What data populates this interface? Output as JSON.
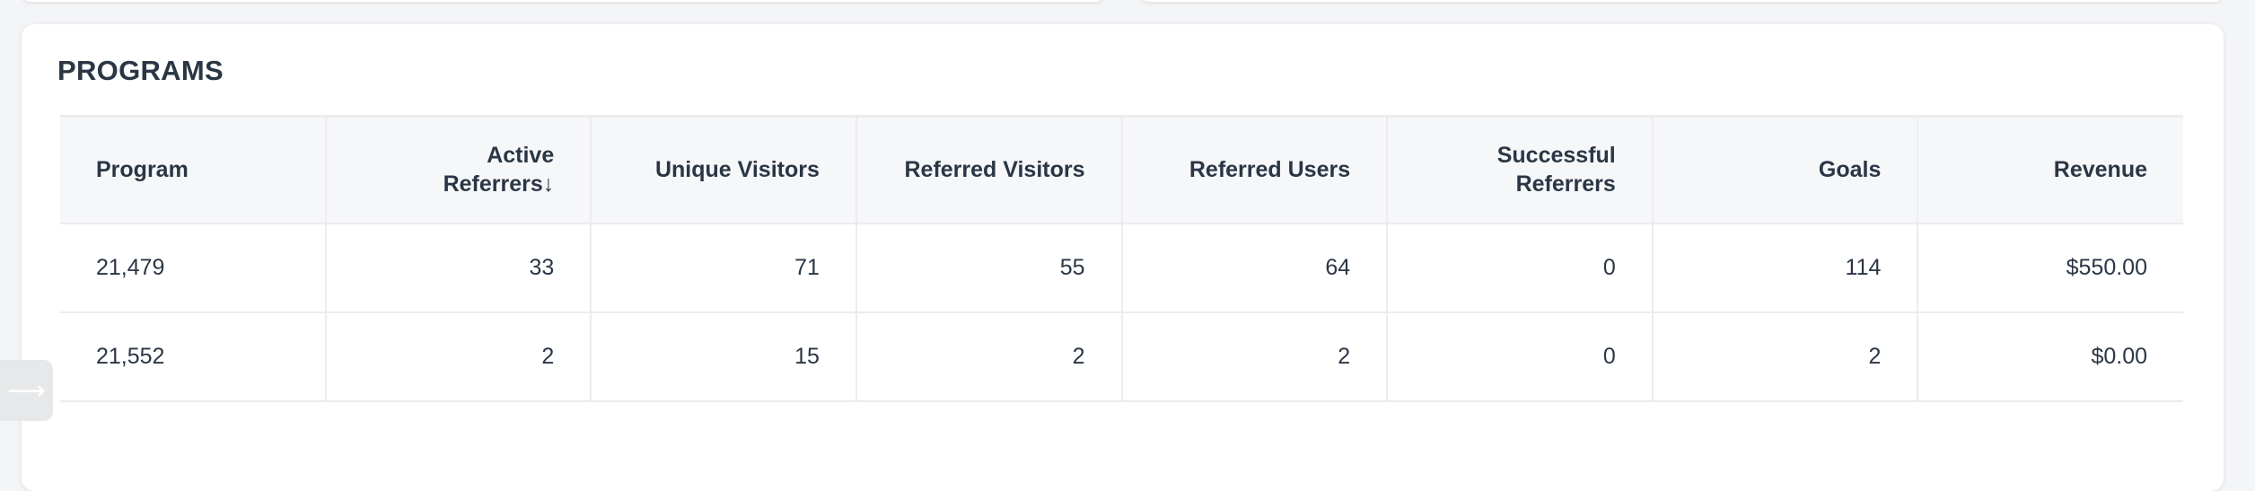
{
  "programs": {
    "title": "PROGRAMS",
    "columns": [
      "Program",
      "Active Referrers↓",
      "Unique Visitors",
      "Referred Visitors",
      "Referred Users",
      "Successful Referrers",
      "Goals",
      "Revenue"
    ],
    "sorted_column": "Active Referrers",
    "sort_direction": "descending",
    "rows": [
      [
        "21,479",
        "33",
        "71",
        "55",
        "64",
        "0",
        "114",
        "$550.00"
      ],
      [
        "21,552",
        "2",
        "15",
        "2",
        "2",
        "0",
        "2",
        "$0.00"
      ]
    ]
  },
  "float_button": {
    "icon": "arrow-right-icon",
    "glyph": "⟶"
  }
}
